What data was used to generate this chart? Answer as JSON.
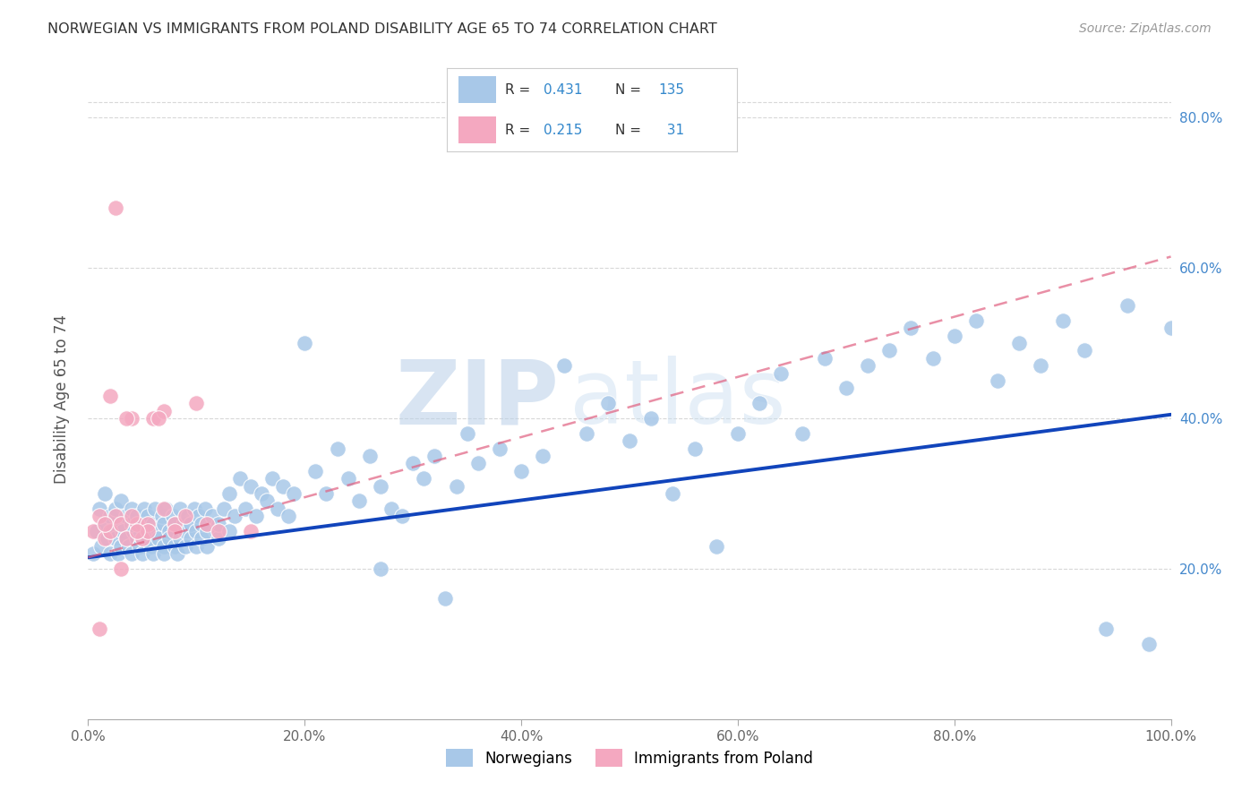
{
  "title": "NORWEGIAN VS IMMIGRANTS FROM POLAND DISABILITY AGE 65 TO 74 CORRELATION CHART",
  "source": "Source: ZipAtlas.com",
  "ylabel": "Disability Age 65 to 74",
  "legend_labels": [
    "Norwegians",
    "Immigrants from Poland"
  ],
  "norwegian_R": "0.431",
  "norwegian_N": "135",
  "polish_R": "0.215",
  "polish_N": "31",
  "norwegian_color": "#a8c8e8",
  "polish_color": "#f4a8c0",
  "norwegian_line_color": "#1144bb",
  "polish_line_color": "#e06080",
  "watermark_zip": "ZIP",
  "watermark_atlas": "atlas",
  "background_color": "#ffffff",
  "grid_color": "#d8d8d8",
  "xlim": [
    0.0,
    1.0
  ],
  "ylim": [
    0.0,
    0.85
  ],
  "xticks": [
    0.0,
    0.2,
    0.4,
    0.6,
    0.8,
    1.0
  ],
  "yticks": [
    0.2,
    0.4,
    0.6,
    0.8
  ],
  "xticklabels": [
    "0.0%",
    "20.0%",
    "40.0%",
    "60.0%",
    "80.0%",
    "100.0%"
  ],
  "yticklabels_right": [
    "20.0%",
    "40.0%",
    "60.0%",
    "80.0%"
  ],
  "nor_line_x0": 0.0,
  "nor_line_y0": 0.215,
  "nor_line_x1": 1.0,
  "nor_line_y1": 0.405,
  "pol_line_x0": 0.0,
  "pol_line_y0": 0.215,
  "pol_line_x1": 1.0,
  "pol_line_y1": 0.615,
  "norwegian_x": [
    0.005,
    0.008,
    0.01,
    0.012,
    0.015,
    0.015,
    0.018,
    0.02,
    0.02,
    0.022,
    0.025,
    0.025,
    0.028,
    0.03,
    0.03,
    0.03,
    0.032,
    0.035,
    0.035,
    0.038,
    0.04,
    0.04,
    0.04,
    0.042,
    0.045,
    0.045,
    0.048,
    0.05,
    0.05,
    0.052,
    0.055,
    0.055,
    0.055,
    0.058,
    0.06,
    0.06,
    0.062,
    0.065,
    0.065,
    0.068,
    0.07,
    0.07,
    0.07,
    0.072,
    0.075,
    0.075,
    0.078,
    0.08,
    0.08,
    0.082,
    0.085,
    0.085,
    0.088,
    0.09,
    0.09,
    0.092,
    0.095,
    0.095,
    0.098,
    0.1,
    0.1,
    0.102,
    0.105,
    0.105,
    0.108,
    0.11,
    0.11,
    0.115,
    0.12,
    0.12,
    0.125,
    0.13,
    0.13,
    0.135,
    0.14,
    0.145,
    0.15,
    0.155,
    0.16,
    0.165,
    0.17,
    0.175,
    0.18,
    0.185,
    0.19,
    0.2,
    0.21,
    0.22,
    0.23,
    0.24,
    0.25,
    0.26,
    0.27,
    0.28,
    0.3,
    0.31,
    0.32,
    0.34,
    0.35,
    0.36,
    0.38,
    0.4,
    0.42,
    0.44,
    0.46,
    0.48,
    0.5,
    0.52,
    0.54,
    0.56,
    0.58,
    0.6,
    0.62,
    0.64,
    0.66,
    0.68,
    0.7,
    0.72,
    0.74,
    0.76,
    0.78,
    0.8,
    0.82,
    0.84,
    0.86,
    0.88,
    0.9,
    0.92,
    0.94,
    0.96,
    0.98,
    1.0,
    0.33,
    0.29,
    0.27
  ],
  "norwegian_y": [
    0.22,
    0.25,
    0.28,
    0.23,
    0.26,
    0.3,
    0.24,
    0.22,
    0.27,
    0.25,
    0.24,
    0.28,
    0.22,
    0.26,
    0.23,
    0.29,
    0.25,
    0.24,
    0.27,
    0.23,
    0.26,
    0.22,
    0.28,
    0.25,
    0.24,
    0.27,
    0.23,
    0.26,
    0.22,
    0.28,
    0.25,
    0.24,
    0.27,
    0.23,
    0.26,
    0.22,
    0.28,
    0.25,
    0.24,
    0.27,
    0.23,
    0.26,
    0.22,
    0.28,
    0.25,
    0.24,
    0.27,
    0.23,
    0.26,
    0.22,
    0.28,
    0.24,
    0.26,
    0.25,
    0.23,
    0.27,
    0.24,
    0.26,
    0.28,
    0.25,
    0.23,
    0.27,
    0.24,
    0.26,
    0.28,
    0.25,
    0.23,
    0.27,
    0.24,
    0.26,
    0.28,
    0.25,
    0.3,
    0.27,
    0.32,
    0.28,
    0.31,
    0.27,
    0.3,
    0.29,
    0.32,
    0.28,
    0.31,
    0.27,
    0.3,
    0.5,
    0.33,
    0.3,
    0.36,
    0.32,
    0.29,
    0.35,
    0.31,
    0.28,
    0.34,
    0.32,
    0.35,
    0.31,
    0.38,
    0.34,
    0.36,
    0.33,
    0.35,
    0.47,
    0.38,
    0.42,
    0.37,
    0.4,
    0.3,
    0.36,
    0.23,
    0.38,
    0.42,
    0.46,
    0.38,
    0.48,
    0.44,
    0.47,
    0.49,
    0.52,
    0.48,
    0.51,
    0.53,
    0.45,
    0.5,
    0.47,
    0.53,
    0.49,
    0.12,
    0.55,
    0.1,
    0.52,
    0.16,
    0.27,
    0.2
  ],
  "polish_x": [
    0.005,
    0.01,
    0.015,
    0.02,
    0.025,
    0.03,
    0.035,
    0.04,
    0.045,
    0.05,
    0.055,
    0.06,
    0.07,
    0.08,
    0.09,
    0.1,
    0.11,
    0.12,
    0.15,
    0.07,
    0.08,
    0.025,
    0.035,
    0.04,
    0.02,
    0.055,
    0.065,
    0.01,
    0.03,
    0.045,
    0.015
  ],
  "polish_y": [
    0.25,
    0.27,
    0.24,
    0.25,
    0.27,
    0.26,
    0.24,
    0.4,
    0.26,
    0.24,
    0.26,
    0.4,
    0.28,
    0.26,
    0.27,
    0.42,
    0.26,
    0.25,
    0.25,
    0.41,
    0.25,
    0.68,
    0.4,
    0.27,
    0.43,
    0.25,
    0.4,
    0.12,
    0.2,
    0.25,
    0.26
  ]
}
